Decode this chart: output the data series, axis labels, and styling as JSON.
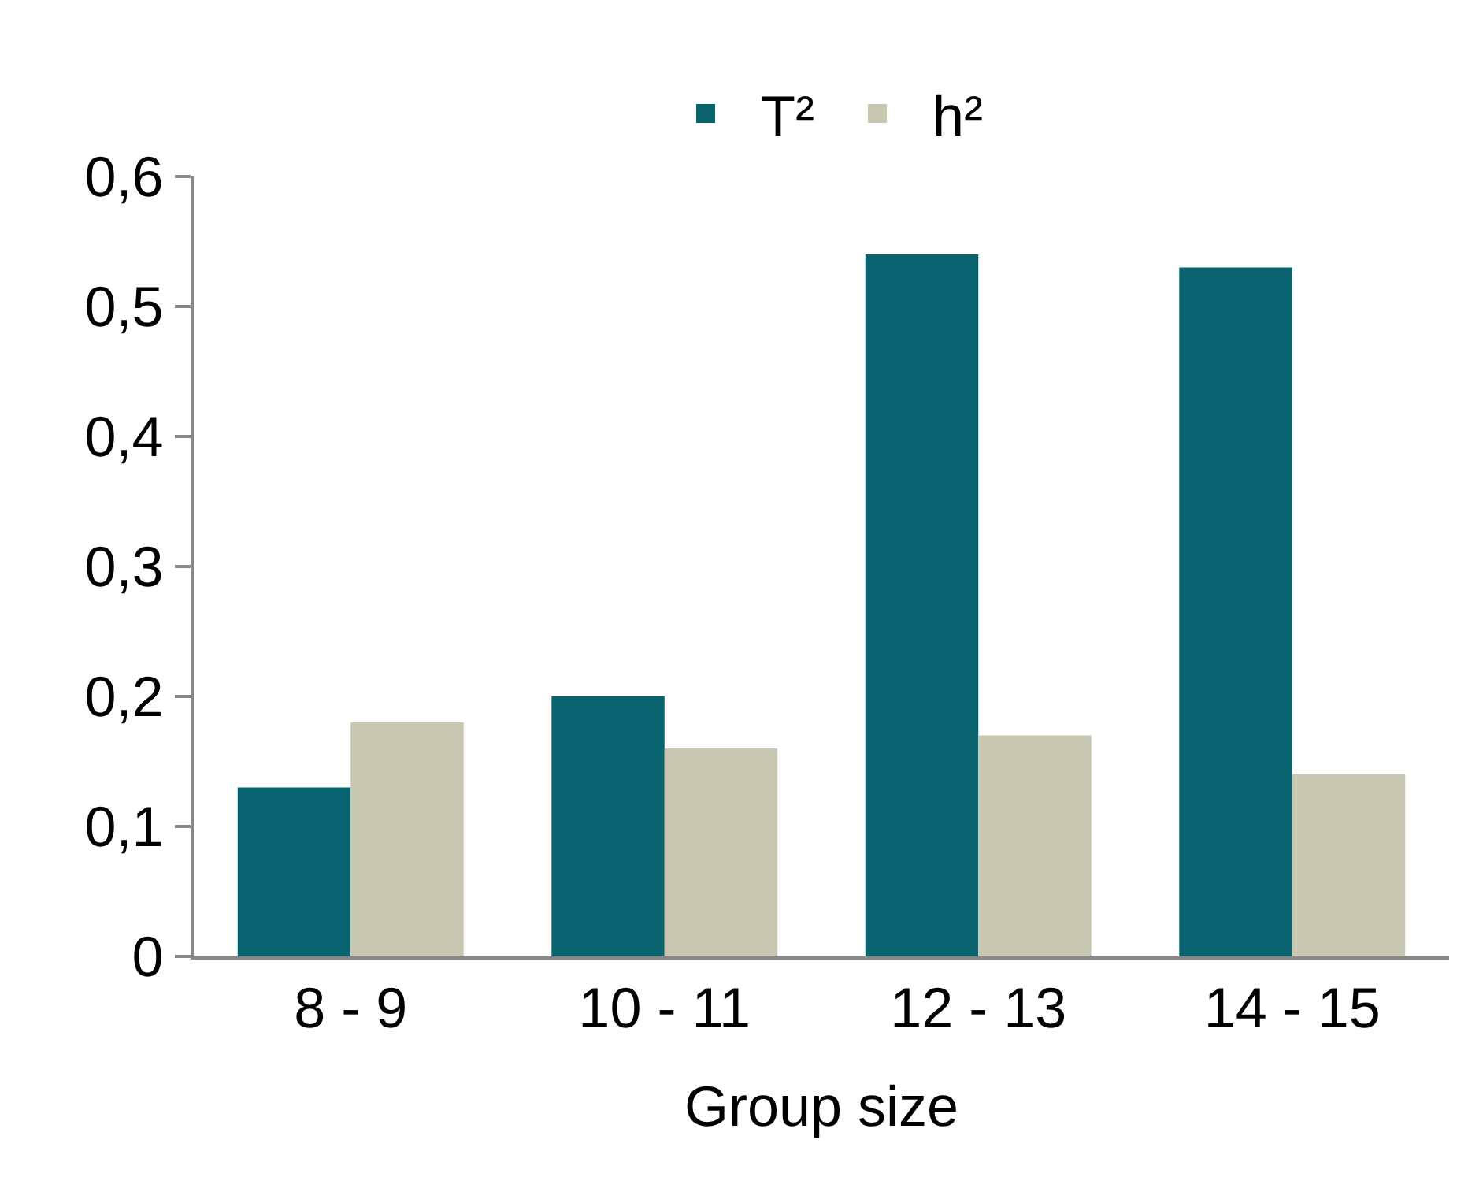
{
  "chart_data": {
    "type": "bar",
    "xlabel": "Group size",
    "categories": [
      "8 - 9",
      "10 - 11",
      "12 - 13",
      "14 - 15"
    ],
    "series": [
      {
        "name": "T²",
        "color": "#0a6470",
        "values": [
          0.13,
          0.2,
          0.54,
          0.53
        ]
      },
      {
        "name": "h²",
        "color": "#c8c8b2",
        "values": [
          0.18,
          0.16,
          0.17,
          0.14
        ]
      }
    ],
    "ylim": [
      0,
      0.6
    ],
    "yticks": [
      {
        "value": 0,
        "label": "0"
      },
      {
        "value": 0.1,
        "label": "0,1"
      },
      {
        "value": 0.2,
        "label": "0,2"
      },
      {
        "value": 0.3,
        "label": "0,3"
      },
      {
        "value": 0.4,
        "label": "0,4"
      },
      {
        "value": 0.5,
        "label": "0,5"
      },
      {
        "value": 0.6,
        "label": "0,6"
      }
    ],
    "grid": false,
    "legend": "top"
  }
}
